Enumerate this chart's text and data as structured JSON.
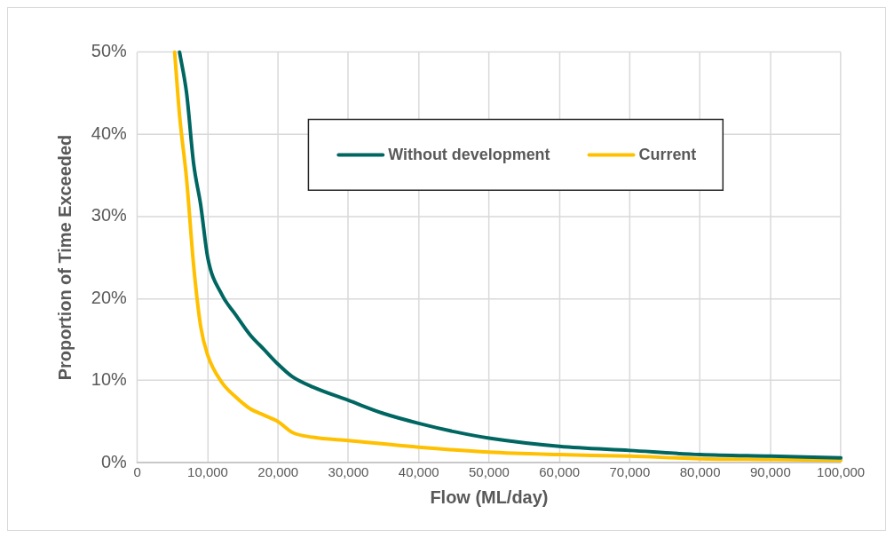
{
  "chart_data": {
    "type": "line",
    "xlabel": "Flow (ML/day)",
    "ylabel": "Proportion of Time Exceeded",
    "xlim": [
      0,
      100000
    ],
    "xticks": [
      0,
      {
        "value": 10000,
        "label": "10,000"
      },
      {
        "value": 20000,
        "label": "20,000"
      },
      {
        "value": 30000,
        "label": "30,000"
      },
      {
        "value": 40000,
        "label": "40,000"
      },
      {
        "value": 50000,
        "label": "50,000"
      },
      {
        "value": 60000,
        "label": "60,000"
      },
      {
        "value": 70000,
        "label": "70,000"
      },
      {
        "value": 80000,
        "label": "80,000"
      },
      {
        "value": 90000,
        "label": "90,000"
      },
      {
        "value": 100000,
        "label": "100,000"
      }
    ],
    "ylim": [
      0,
      50
    ],
    "yticks": [
      {
        "value": 0,
        "label": "0%"
      },
      {
        "value": 10,
        "label": "10%"
      },
      {
        "value": 20,
        "label": "20%"
      },
      {
        "value": 30,
        "label": "30%"
      },
      {
        "value": 40,
        "label": "40%"
      },
      {
        "value": 50,
        "label": "50%"
      }
    ],
    "grid": true,
    "legend": "top",
    "marker": "none",
    "line_style": "solid",
    "series": [
      {
        "name": "Without development",
        "color": "#006661",
        "x": [
          6000,
          7000,
          8000,
          9000,
          10000,
          12000,
          14000,
          16000,
          18000,
          20000,
          22000,
          25000,
          30000,
          35000,
          40000,
          45000,
          50000,
          60000,
          70000,
          80000,
          90000,
          100000
        ],
        "values": [
          50,
          45,
          36.4,
          31.4,
          25,
          20.5,
          18,
          15.6,
          13.8,
          12,
          10.5,
          9.2,
          7.6,
          6,
          4.8,
          3.8,
          3,
          2,
          1.5,
          1,
          0.8,
          0.6
        ]
      },
      {
        "name": "Current",
        "color": "#ffc000",
        "x": [
          5300,
          6000,
          7000,
          8000,
          9000,
          10000,
          12000,
          14000,
          16000,
          18000,
          20000,
          22000,
          25000,
          30000,
          40000,
          50000,
          60000,
          70000,
          80000,
          90000,
          100000
        ],
        "values": [
          50,
          42.3,
          34.5,
          24,
          16.6,
          13.1,
          9.8,
          8,
          6.6,
          5.8,
          5,
          3.7,
          3.1,
          2.7,
          1.9,
          1.3,
          1,
          0.8,
          0.5,
          0.4,
          0.3
        ]
      }
    ]
  }
}
